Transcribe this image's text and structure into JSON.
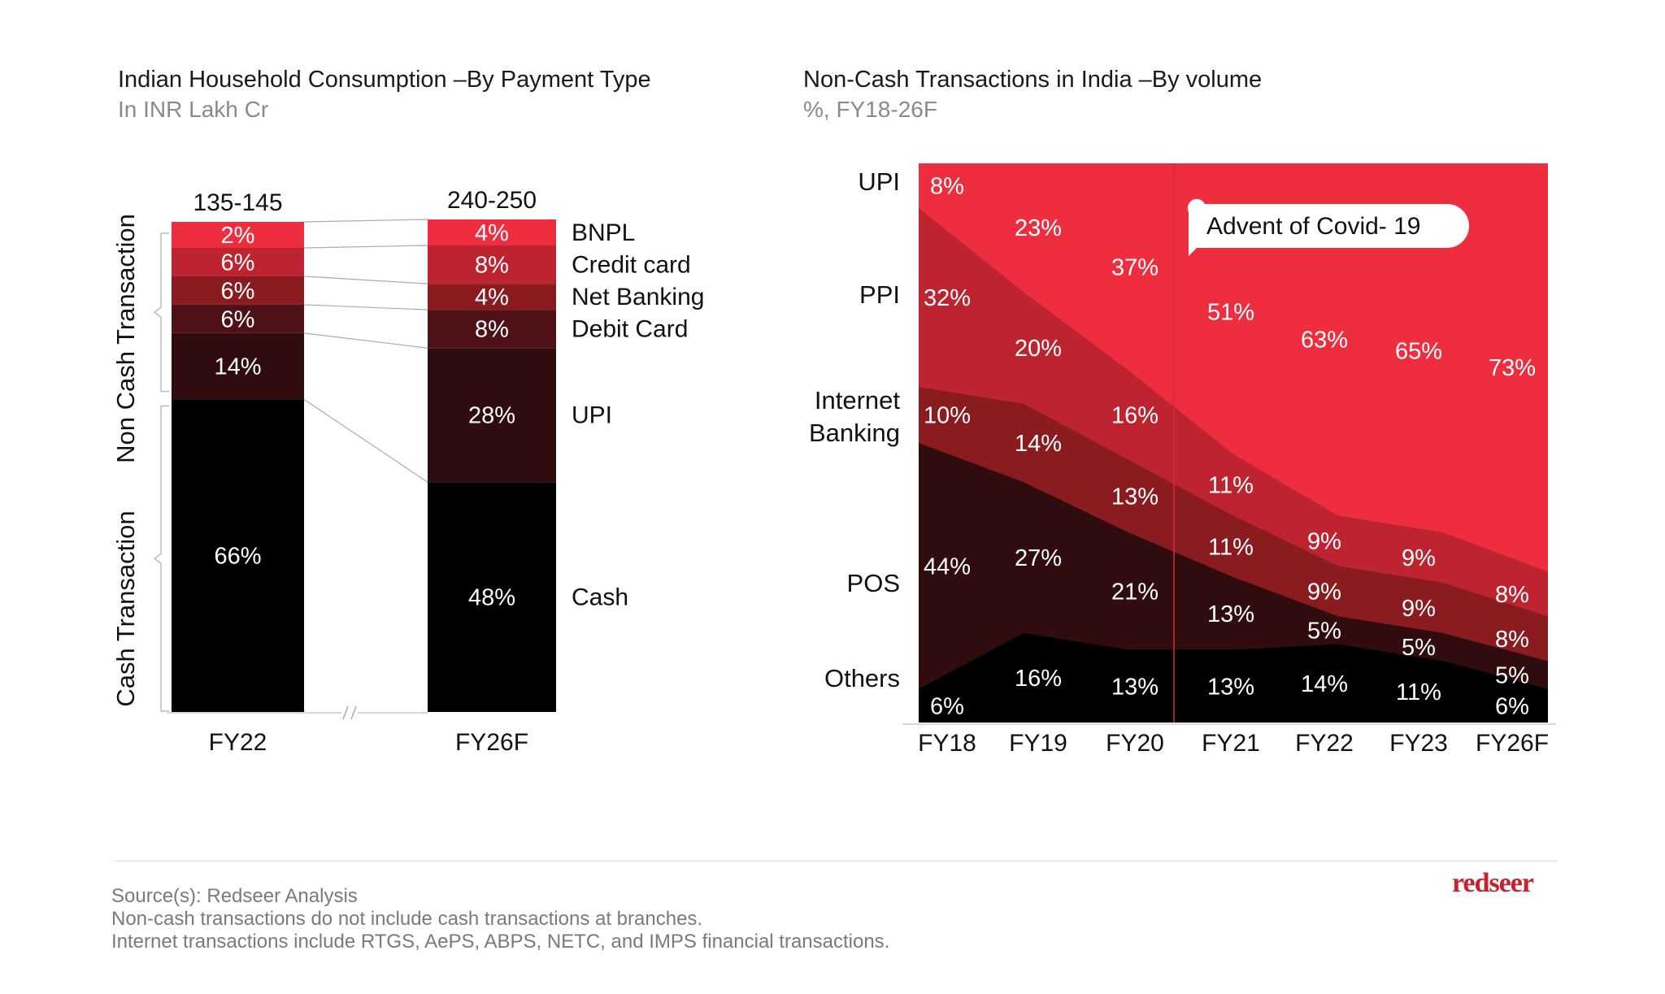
{
  "chart_data": [
    {
      "type": "bar",
      "stacked": true,
      "title": "Indian Household Consumption –By Payment Type",
      "subtitle": "In INR Lakh Cr",
      "categories": [
        "FY22",
        "FY26F"
      ],
      "totals": [
        "135-145",
        "240-250"
      ],
      "series": [
        {
          "name": "Cash",
          "values": [
            66,
            48
          ],
          "color": "#000000"
        },
        {
          "name": "UPI",
          "values": [
            14,
            28
          ],
          "color": "#300c0e"
        },
        {
          "name": "Debit Card",
          "values": [
            6,
            8
          ],
          "color": "#4e1216"
        },
        {
          "name": "Net Banking",
          "values": [
            6,
            4
          ],
          "color": "#8a1b1f"
        },
        {
          "name": "Credit card",
          "values": [
            6,
            8
          ],
          "color": "#be2430"
        },
        {
          "name": "BNPL",
          "values": [
            2,
            4
          ],
          "color": "#ee2e3e"
        }
      ],
      "group_labels": [
        "Non Cash Transaction",
        "Cash Transaction"
      ],
      "legend_placement": "right"
    },
    {
      "type": "area",
      "stacked": true,
      "title": "Non-Cash Transactions in India –By volume",
      "subtitle": "%, FY18-26F",
      "categories": [
        "FY18",
        "FY19",
        "FY20",
        "FY21",
        "FY22",
        "FY23",
        "FY26F"
      ],
      "series": [
        {
          "name": "Others",
          "values": [
            6,
            16,
            13,
            13,
            14,
            11,
            6
          ],
          "color": "#000000"
        },
        {
          "name": "POS",
          "values": [
            44,
            27,
            21,
            13,
            5,
            5,
            5
          ],
          "color": "#300c0e"
        },
        {
          "name": "Internet Banking",
          "values": [
            10,
            14,
            13,
            11,
            9,
            9,
            8
          ],
          "color": "#8a1b1f"
        },
        {
          "name": "PPI",
          "values": [
            32,
            20,
            16,
            11,
            9,
            9,
            8
          ],
          "color": "#be2430"
        },
        {
          "name": "UPI",
          "values": [
            8,
            23,
            37,
            51,
            63,
            65,
            73
          ],
          "color": "#ee2e3e"
        }
      ],
      "annotation": "Advent of Covid- 19",
      "ylim": [
        0,
        100
      ],
      "legend_placement": "left"
    }
  ],
  "footer": {
    "lines": [
      "Source(s): Redseer Analysis",
      "Non-cash transactions do not include cash transactions at branches.",
      "Internet transactions include RTGS, AePS, ABPS, NETC, and IMPS financial transactions."
    ],
    "logo": "redseer"
  }
}
